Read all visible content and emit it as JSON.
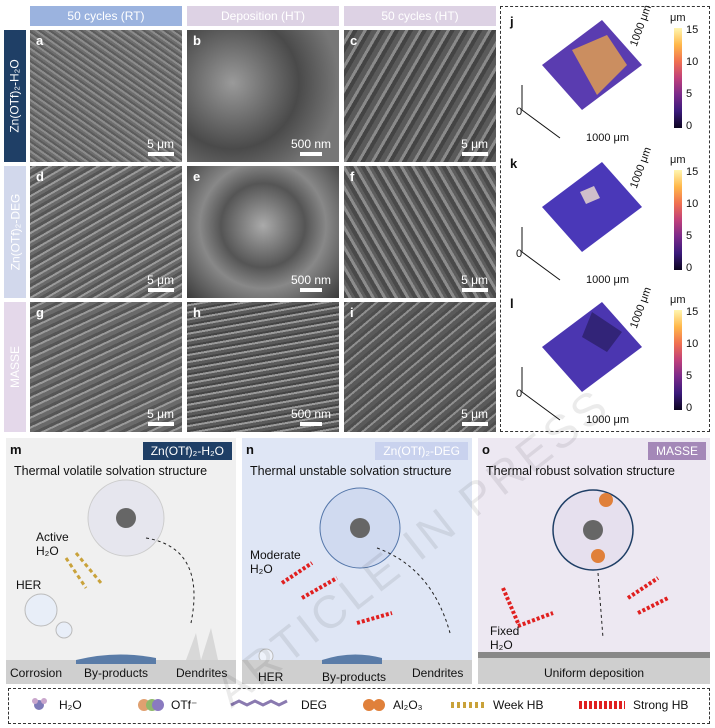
{
  "columns": [
    "50 cycles (RT)",
    "Deposition (HT)",
    "50 cycles (HT)"
  ],
  "rows": [
    "Zn(OTf)₂-H₂O",
    "Zn(OTf)₂-DEG",
    "MASSE"
  ],
  "panels": [
    {
      "label": "a",
      "scale": "5 μm"
    },
    {
      "label": "b",
      "scale": "500 nm"
    },
    {
      "label": "c",
      "scale": "5 μm"
    },
    {
      "label": "d",
      "scale": "5 μm"
    },
    {
      "label": "e",
      "scale": "500 nm"
    },
    {
      "label": "f",
      "scale": "5 μm"
    },
    {
      "label": "g",
      "scale": "5 μm"
    },
    {
      "label": "h",
      "scale": "500 nm"
    },
    {
      "label": "i",
      "scale": "5 μm"
    }
  ],
  "afm": [
    {
      "label": "j"
    },
    {
      "label": "k"
    },
    {
      "label": "l"
    }
  ],
  "afm_axes": {
    "unit": "μm",
    "ticks": [
      "15",
      "10",
      "5",
      "0"
    ],
    "zero": "0",
    "x": "1000 μm",
    "y": "1000 μm"
  },
  "bottom": [
    {
      "label": "m",
      "tag": "Zn(OTf)₂-H₂O",
      "title": "Thermal volatile solvation structure",
      "notes": [
        "Active H₂O",
        "HER",
        "Corrosion",
        "By-products",
        "Dendrites"
      ]
    },
    {
      "label": "n",
      "tag": "Zn(OTf)₂-DEG",
      "title": "Thermal unstable solvation structure",
      "notes": [
        "Moderate H₂O",
        "HER",
        "By-products",
        "Dendrites"
      ]
    },
    {
      "label": "o",
      "tag": "MASSE",
      "title": "Thermal robust solvation structure",
      "notes": [
        "Fixed H₂O",
        "Uniform deposition"
      ]
    }
  ],
  "legend": [
    "H₂O",
    "OTf⁻",
    "DEG",
    "Al₂O₃",
    "Week HB",
    "Strong HB"
  ],
  "watermark": "ARTICLE IN PRESS",
  "colors": {
    "row1": "#1f3f66",
    "row2": "#d2d8ec",
    "row3": "#e4d8ea",
    "tag_m": "#1f3f66",
    "tag_n": "#c9d2ee",
    "tag_o": "#a488b8"
  }
}
